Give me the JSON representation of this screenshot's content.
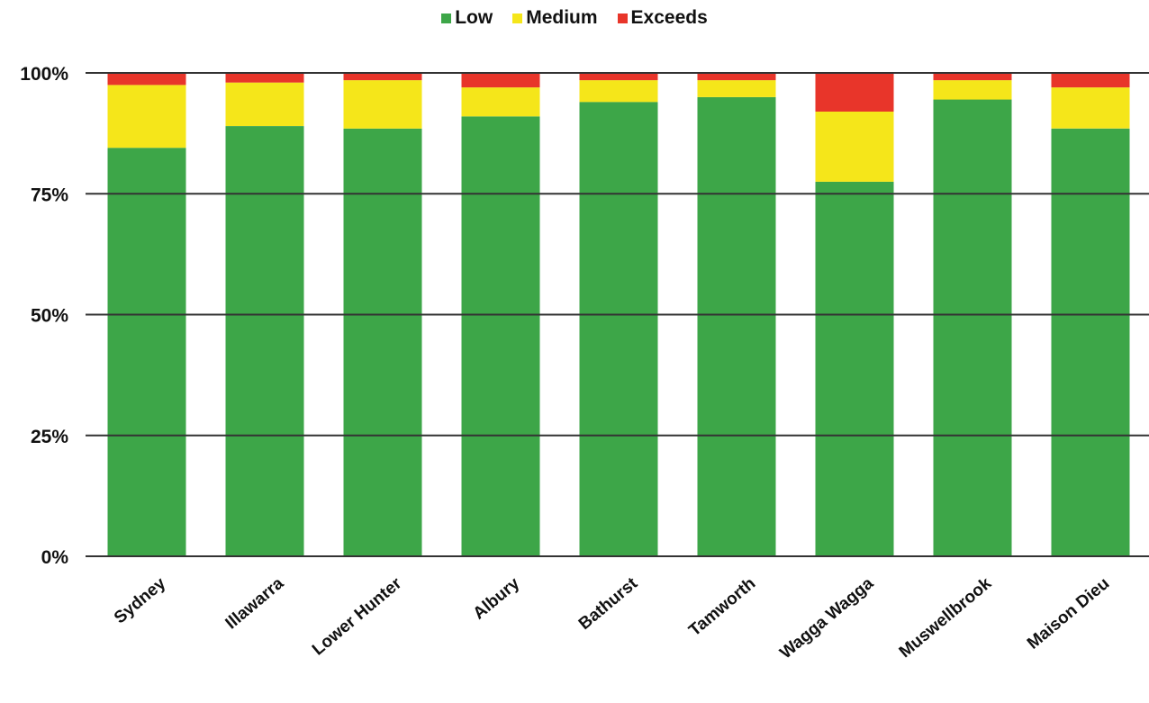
{
  "chart_data": {
    "type": "bar",
    "stacked": true,
    "percent": true,
    "title": "",
    "xlabel": "",
    "ylabel": "",
    "ylim": [
      0,
      100
    ],
    "yticks": [
      "0%",
      "25%",
      "50%",
      "75%",
      "100%"
    ],
    "ytick_values": [
      0,
      25,
      50,
      75,
      100
    ],
    "grid": true,
    "legend_position": "top-center",
    "categories": [
      "Sydney",
      "Illawarra",
      "Lower Hunter",
      "Albury",
      "Bathurst",
      "Tamworth",
      "Wagga Wagga",
      "Muswellbrook",
      "Maison Dieu"
    ],
    "series": [
      {
        "name": "Low",
        "color": "#3da648",
        "values": [
          84.5,
          89,
          88.5,
          91,
          94,
          95,
          77.5,
          94.5,
          88.5
        ]
      },
      {
        "name": "Medium",
        "color": "#f5e61a",
        "values": [
          13,
          9,
          10,
          6,
          4.5,
          3.5,
          14.5,
          4,
          8.5
        ]
      },
      {
        "name": "Exceeds",
        "color": "#e8352a",
        "values": [
          2.5,
          2,
          1.5,
          3,
          1.5,
          1.5,
          8,
          1.5,
          3
        ]
      }
    ]
  }
}
